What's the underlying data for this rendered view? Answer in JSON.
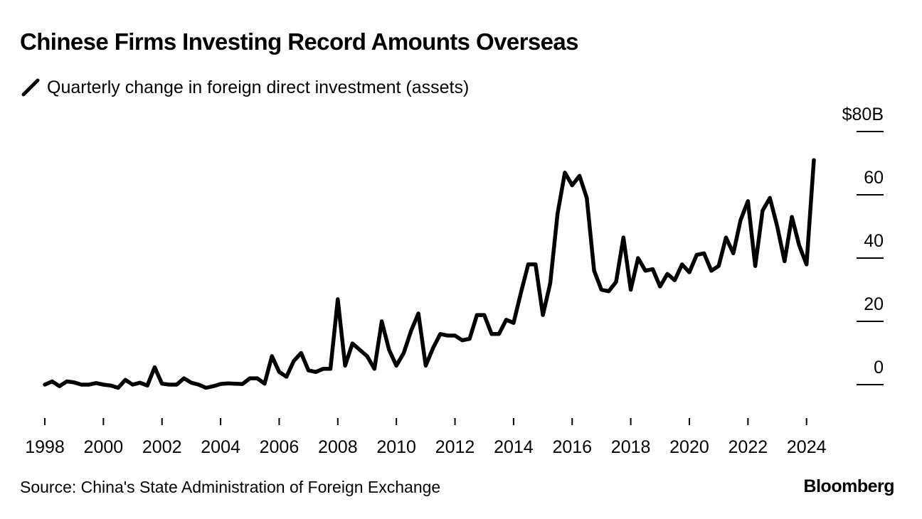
{
  "chart_data": {
    "type": "line",
    "title": "Chinese Firms Investing Record Amounts Overseas",
    "series": [
      {
        "name": "Quarterly change in foreign direct investment (assets)",
        "color": "#000000",
        "x_start": 1998.0,
        "x_step": 0.25,
        "values": [
          0,
          1,
          -0.5,
          1,
          0.7,
          0,
          0,
          0.5,
          0,
          -0.3,
          -1,
          1.5,
          0,
          0.6,
          -0.3,
          5.5,
          0.3,
          0,
          0,
          2,
          0.6,
          0,
          -1,
          -0.5,
          0.2,
          0.4,
          0.3,
          0.2,
          2,
          2,
          0.3,
          9,
          4,
          2.5,
          7.5,
          10,
          4.5,
          4,
          5,
          5,
          27,
          6,
          13,
          11,
          9,
          5,
          20,
          11,
          6,
          10,
          17,
          22.5,
          6,
          11.5,
          16,
          15.5,
          15.5,
          14,
          14.5,
          22,
          22,
          16,
          16,
          20.5,
          19.5,
          29,
          38,
          38,
          22,
          32,
          54,
          67,
          63,
          66,
          59,
          36,
          30,
          29.5,
          32.5,
          46.5,
          30,
          40,
          36,
          36.5,
          31,
          35,
          33,
          38,
          35.5,
          41,
          41.5,
          36,
          37.5,
          46.5,
          41.5,
          52,
          58,
          37.5,
          55,
          59,
          50,
          39,
          53,
          44,
          38,
          71
        ]
      }
    ],
    "x_ticks": [
      1998,
      2000,
      2002,
      2004,
      2006,
      2008,
      2010,
      2012,
      2014,
      2016,
      2018,
      2020,
      2022,
      2024
    ],
    "x_tick_labels": [
      "1998",
      "2000",
      "2002",
      "2004",
      "2006",
      "2008",
      "2010",
      "2012",
      "2014",
      "2016",
      "2018",
      "2020",
      "2022",
      "2024"
    ],
    "y_ticks": [
      0,
      20,
      40,
      60,
      80
    ],
    "y_tick_labels": [
      "0",
      "20",
      "40",
      "60",
      "$80B"
    ],
    "xlim": [
      1998,
      2024.25
    ],
    "ylim": [
      -11,
      80
    ],
    "grid": false,
    "xlabel": "",
    "ylabel": ""
  },
  "subtitle": "Quarterly change in foreign direct investment (assets)",
  "source": "Source: China's State Administration of Foreign Exchange",
  "brand": "Bloomberg"
}
